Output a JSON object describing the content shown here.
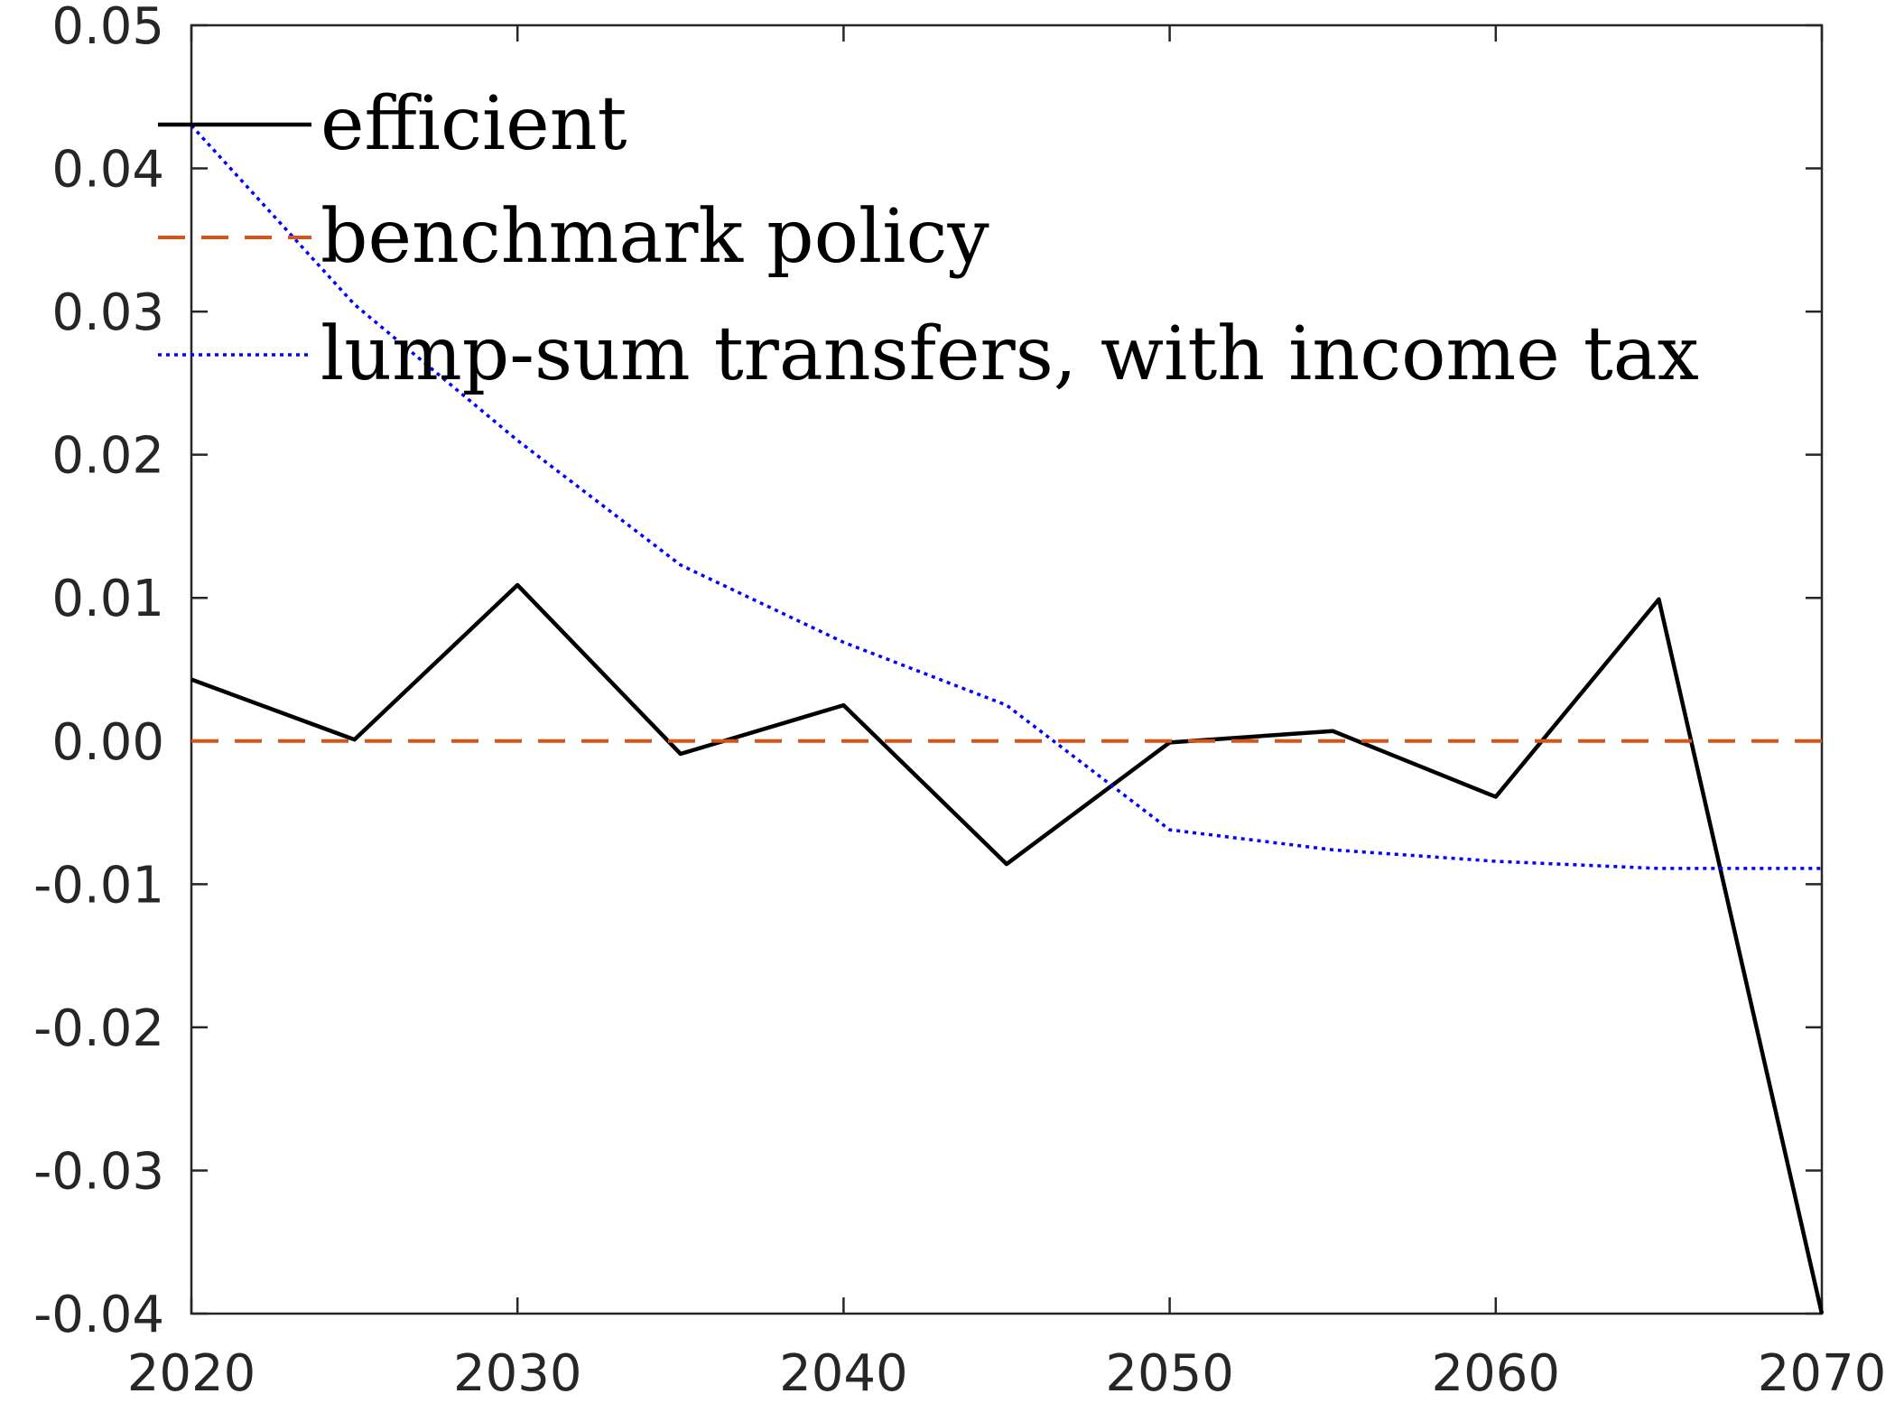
{
  "chart_data": {
    "type": "line",
    "title": "",
    "xlabel": "",
    "ylabel": "",
    "xlim": [
      2020,
      2070
    ],
    "ylim": [
      -0.04,
      0.05
    ],
    "x_ticks": [
      "2020",
      "2030",
      "2040",
      "2050",
      "2060",
      "2070"
    ],
    "y_ticks": [
      "0.05",
      "0.04",
      "0.03",
      "0.02",
      "0.01",
      "0.00",
      "-0.01",
      "-0.02",
      "-0.03",
      "-0.04"
    ],
    "grid": false,
    "legend_position": "top-left",
    "series": [
      {
        "name": "efficient",
        "color": "#000000",
        "style": "solid",
        "x": [
          2020,
          2025,
          2030,
          2035,
          2040,
          2045,
          2050,
          2055,
          2060,
          2065,
          2070
        ],
        "y": [
          0.0043,
          0.0001,
          0.0109,
          -0.0009,
          0.0025,
          -0.0086,
          -0.0001,
          0.0007,
          -0.0039,
          0.0099,
          -0.04
        ]
      },
      {
        "name": "benchmark policy",
        "color": "#D95319",
        "style": "dashed",
        "x": [
          2020,
          2070
        ],
        "y": [
          0.0,
          0.0
        ]
      },
      {
        "name": "lump-sum transfers, with income tax",
        "color": "#0000FF",
        "style": "dotted",
        "x": [
          2020,
          2025,
          2030,
          2035,
          2040,
          2045,
          2050,
          2055,
          2060,
          2065,
          2070
        ],
        "y": [
          0.043,
          0.0305,
          0.021,
          0.0123,
          0.0069,
          0.0025,
          -0.0062,
          -0.0076,
          -0.0084,
          -0.0089,
          -0.0089
        ]
      }
    ]
  }
}
